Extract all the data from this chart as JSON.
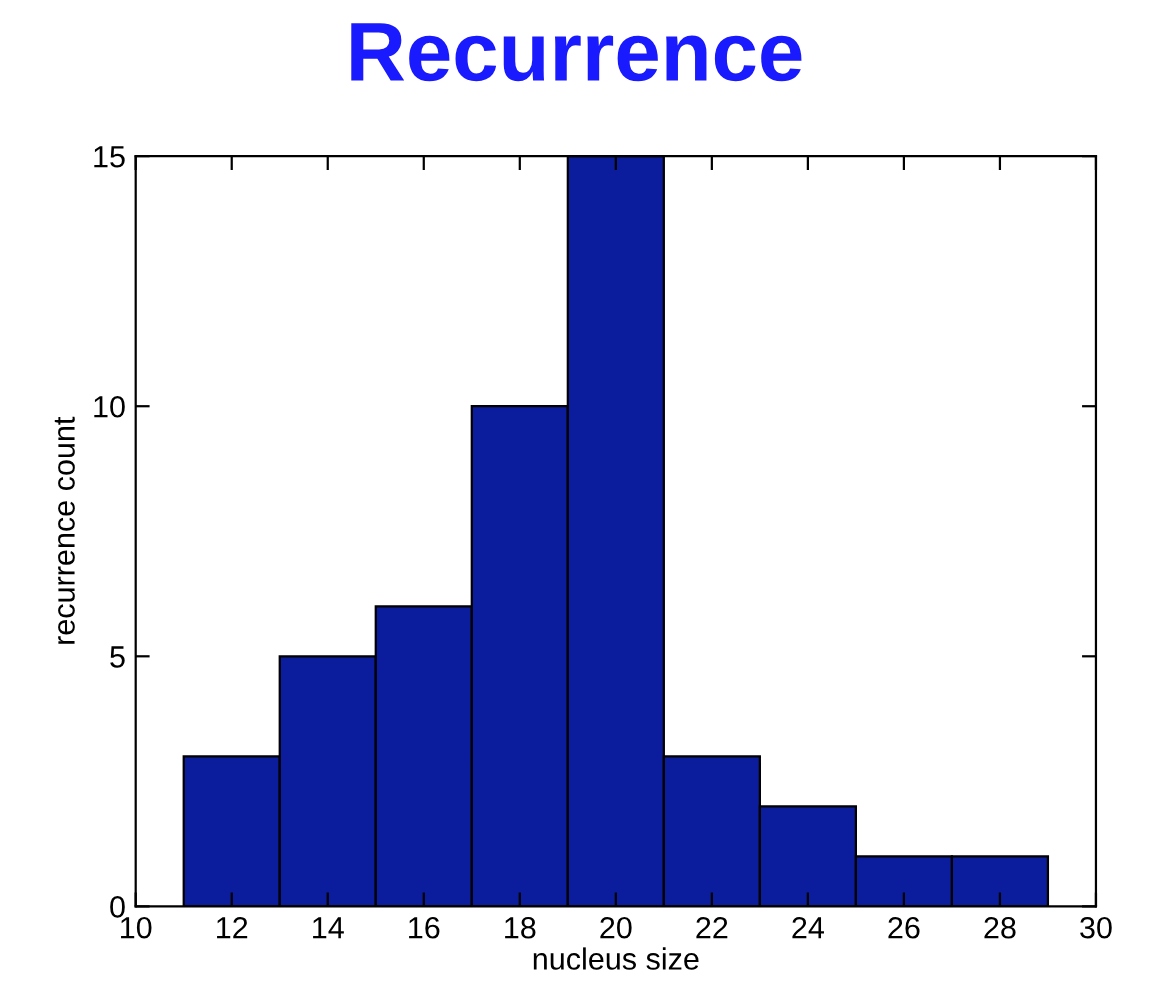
{
  "chart_data": {
    "type": "histogram",
    "title": "Recurrence",
    "xlabel": "nucleus size",
    "ylabel": "recurrence count",
    "bins": [
      11,
      13,
      15,
      17,
      19,
      21,
      23,
      25,
      27,
      29
    ],
    "values": [
      3,
      5,
      6,
      10,
      15,
      3,
      2,
      1,
      1
    ],
    "color": "#0b1c9c",
    "xlim": [
      10,
      30
    ],
    "xticks": [
      10,
      12,
      14,
      16,
      18,
      20,
      22,
      24,
      26,
      28,
      30
    ],
    "ylim": [
      0,
      15
    ],
    "yticks": [
      0,
      5,
      10,
      15
    ],
    "grid": false
  }
}
